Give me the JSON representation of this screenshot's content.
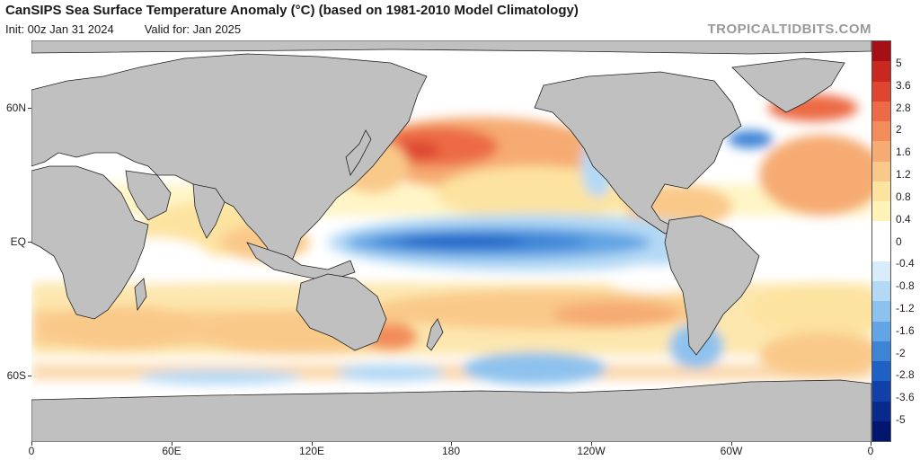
{
  "header": {
    "title": "CanSIPS Sea Surface Temperature Anomaly (°C) (based on 1981-2010 Model Climatology)",
    "init": "Init: 00z Jan 31 2024",
    "valid": "Valid for: Jan 2025",
    "brand": "TROPICALTIDBITS.COM"
  },
  "map": {
    "latitude_labels": [
      "60N",
      "EQ",
      "60S"
    ],
    "longitude_labels": [
      "0",
      "60E",
      "120E",
      "180",
      "120W",
      "60W",
      "0"
    ],
    "colors": {
      "land": "#c0c0c0",
      "ocean_neutral": "#ffffff",
      "border": "#222222"
    }
  },
  "colorbar": {
    "labels": [
      "5",
      "3.6",
      "2.8",
      "2",
      "1.6",
      "1.2",
      "0.8",
      "0.4",
      "0",
      "-0.4",
      "-0.8",
      "-1.2",
      "-1.6",
      "-2",
      "-2.8",
      "-3.6",
      "-5"
    ],
    "colors": [
      "#a50f15",
      "#c8281e",
      "#de4630",
      "#ec6a45",
      "#f28c5a",
      "#f6ab72",
      "#f9c98a",
      "#fde3a0",
      "#fff3b8",
      "#ffffff",
      "#ffffff",
      "#d8ecfa",
      "#b4d9f5",
      "#8ec2ee",
      "#62a4e4",
      "#3d83d6",
      "#1f60c4",
      "#1040a8",
      "#082a8c",
      "#021670"
    ]
  }
}
